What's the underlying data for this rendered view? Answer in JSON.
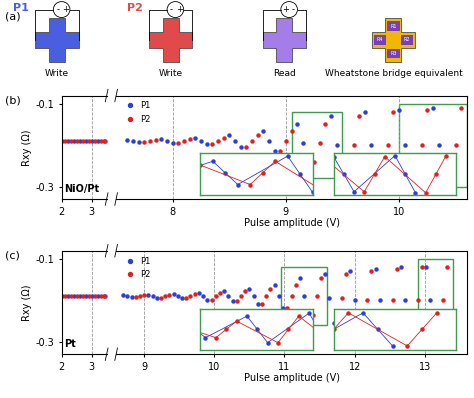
{
  "panel_a": {
    "label": "(a)",
    "devices": [
      {
        "title": "P1",
        "color": "#4a5fe0",
        "source_signs": [
          "-",
          "+"
        ],
        "caption": "Write"
      },
      {
        "title": "P2",
        "color": "#e04a4a",
        "source_signs": [
          "-",
          "+"
        ],
        "caption": "Write"
      },
      {
        "color": "#a57de8",
        "source_signs": [
          "+",
          "-"
        ],
        "caption": "Read"
      },
      {
        "color": "#f2b705",
        "resistors": [
          "R1",
          "R2",
          "R3",
          "R4"
        ],
        "caption": "Wheatstone bridge equivalent"
      }
    ]
  },
  "chart_data": [
    {
      "type": "scatter",
      "label": "(b)",
      "material": "NiO/Pt",
      "x_label": "Pulse amplitude (V)",
      "y_label": "Rxy (Ω)",
      "xlim": [
        [
          2,
          3.5
        ],
        [
          7.5,
          10.6
        ]
      ],
      "xticks": [
        [
          2,
          3
        ],
        [
          8,
          9,
          10
        ]
      ],
      "ylim": [
        -0.33,
        -0.08
      ],
      "yticks": [
        -0.1,
        -0.3
      ],
      "grid": true,
      "legend": "upper left",
      "series": [
        {
          "name": "P1",
          "color": "#2b3fd6",
          "marker": "o",
          "line_style": "none",
          "x": [
            2.0,
            2.2,
            2.4,
            2.6,
            2.8,
            3.0,
            3.2,
            3.4,
            7.6,
            7.65,
            7.7,
            7.9,
            7.95,
            8.0,
            8.2,
            8.25,
            8.3,
            8.5,
            8.55,
            8.6,
            8.8,
            8.85,
            8.9,
            9.1,
            9.15,
            9.2,
            9.4,
            9.45,
            9.5,
            9.7,
            9.75,
            9.8,
            10.0,
            10.05,
            10.1,
            10.3,
            10.35,
            10.4
          ],
          "values": [
            -0.19,
            -0.19,
            -0.19,
            -0.19,
            -0.19,
            -0.19,
            -0.19,
            -0.19,
            -0.188,
            -0.19,
            -0.192,
            -0.186,
            -0.19,
            -0.194,
            -0.182,
            -0.19,
            -0.198,
            -0.176,
            -0.19,
            -0.204,
            -0.165,
            -0.19,
            -0.215,
            -0.15,
            -0.195,
            -0.24,
            -0.13,
            -0.2,
            -0.27,
            -0.12,
            -0.2,
            -0.28,
            -0.115,
            -0.2,
            -0.285,
            -0.11,
            -0.2,
            -0.29
          ]
        },
        {
          "name": "P2",
          "color": "#e02020",
          "marker": "o",
          "line_style": "none",
          "x": [
            2.1,
            2.3,
            2.5,
            2.7,
            2.9,
            3.1,
            3.3,
            3.45,
            7.75,
            7.8,
            7.85,
            8.05,
            8.1,
            8.15,
            8.35,
            8.4,
            8.45,
            8.65,
            8.7,
            8.75,
            8.95,
            9.0,
            9.05,
            9.25,
            9.3,
            9.35,
            9.55,
            9.6,
            9.65,
            9.85,
            9.9,
            9.95,
            10.15,
            10.2,
            10.25,
            10.45,
            10.5,
            10.55
          ],
          "values": [
            -0.19,
            -0.19,
            -0.19,
            -0.19,
            -0.19,
            -0.19,
            -0.19,
            -0.19,
            -0.192,
            -0.19,
            -0.188,
            -0.194,
            -0.19,
            -0.186,
            -0.198,
            -0.19,
            -0.182,
            -0.204,
            -0.19,
            -0.176,
            -0.215,
            -0.19,
            -0.165,
            -0.24,
            -0.195,
            -0.15,
            -0.27,
            -0.2,
            -0.13,
            -0.28,
            -0.2,
            -0.12,
            -0.285,
            -0.2,
            -0.115,
            -0.29,
            -0.2,
            -0.11
          ]
        }
      ],
      "insets": [
        {
          "color": "#3c9d4c",
          "xlim": [
            9.05,
            9.5
          ],
          "ylim": [
            -0.28,
            -0.12
          ]
        },
        {
          "color": "#3c9d4c",
          "xlim": [
            10.0,
            10.6
          ],
          "ylim": [
            -0.3,
            -0.1
          ]
        }
      ]
    },
    {
      "type": "scatter",
      "label": "(c)",
      "material": "Pt",
      "x_label": "Pulse amplitude (V)",
      "y_label": "Rxy (Ω)",
      "xlim": [
        [
          2,
          3.5
        ],
        [
          8.6,
          13.6
        ]
      ],
      "xticks": [
        [
          2,
          3
        ],
        [
          9,
          10,
          11,
          12,
          13
        ]
      ],
      "ylim": [
        -0.33,
        -0.08
      ],
      "yticks": [
        -0.1,
        -0.3
      ],
      "grid": true,
      "legend": "upper left",
      "series": [
        {
          "name": "P1",
          "color": "#2b3fd6",
          "marker": "o",
          "line_style": "none",
          "x": [
            2.0,
            2.2,
            2.4,
            2.6,
            2.8,
            3.0,
            3.2,
            3.4,
            8.7,
            8.76,
            8.82,
            9.06,
            9.12,
            9.18,
            9.42,
            9.48,
            9.54,
            9.78,
            9.84,
            9.9,
            10.14,
            10.2,
            10.26,
            10.5,
            10.56,
            10.62,
            10.86,
            10.92,
            10.98,
            11.22,
            11.28,
            11.34,
            11.58,
            11.64,
            11.7,
            11.94,
            12.0,
            12.06,
            12.3,
            12.36,
            12.42,
            12.66,
            12.72,
            12.78,
            13.02,
            13.08,
            13.14
          ],
          "values": [
            -0.19,
            -0.19,
            -0.19,
            -0.19,
            -0.19,
            -0.19,
            -0.19,
            -0.19,
            -0.188,
            -0.19,
            -0.192,
            -0.187,
            -0.19,
            -0.193,
            -0.185,
            -0.19,
            -0.195,
            -0.182,
            -0.19,
            -0.198,
            -0.178,
            -0.19,
            -0.202,
            -0.172,
            -0.19,
            -0.208,
            -0.162,
            -0.19,
            -0.218,
            -0.145,
            -0.19,
            -0.235,
            -0.135,
            -0.195,
            -0.255,
            -0.13,
            -0.2,
            -0.27,
            -0.125,
            -0.2,
            -0.275,
            -0.12,
            -0.2,
            -0.28,
            -0.12,
            -0.2,
            -0.28
          ]
        },
        {
          "name": "P2",
          "color": "#e02020",
          "marker": "o",
          "line_style": "none",
          "x": [
            2.1,
            2.3,
            2.5,
            2.7,
            2.9,
            3.1,
            3.3,
            3.45,
            8.88,
            8.94,
            9.0,
            9.24,
            9.3,
            9.36,
            9.6,
            9.66,
            9.72,
            9.96,
            10.02,
            10.08,
            10.32,
            10.38,
            10.44,
            10.68,
            10.74,
            10.8,
            11.04,
            11.1,
            11.16,
            11.4,
            11.46,
            11.52,
            11.76,
            11.82,
            11.88,
            12.12,
            12.18,
            12.24,
            12.48,
            12.54,
            12.6,
            12.84,
            12.9,
            12.96,
            13.2,
            13.26,
            13.32
          ],
          "values": [
            -0.19,
            -0.19,
            -0.19,
            -0.19,
            -0.19,
            -0.19,
            -0.19,
            -0.19,
            -0.192,
            -0.19,
            -0.188,
            -0.193,
            -0.19,
            -0.187,
            -0.195,
            -0.19,
            -0.185,
            -0.198,
            -0.19,
            -0.182,
            -0.202,
            -0.19,
            -0.178,
            -0.208,
            -0.19,
            -0.172,
            -0.218,
            -0.19,
            -0.162,
            -0.235,
            -0.19,
            -0.145,
            -0.255,
            -0.195,
            -0.135,
            -0.27,
            -0.2,
            -0.13,
            -0.275,
            -0.2,
            -0.125,
            -0.28,
            -0.2,
            -0.12,
            -0.28,
            -0.2,
            -0.12
          ]
        }
      ],
      "insets": [
        {
          "color": "#3c9d4c",
          "xlim": [
            10.95,
            11.6
          ],
          "ylim": [
            -0.26,
            -0.12
          ]
        },
        {
          "color": "#3c9d4c",
          "xlim": [
            12.9,
            13.4
          ],
          "ylim": [
            -0.3,
            -0.1
          ]
        }
      ]
    }
  ]
}
